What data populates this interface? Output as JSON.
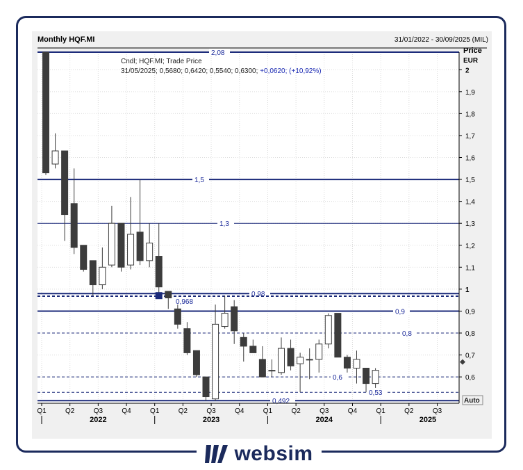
{
  "brand": {
    "name": "websim"
  },
  "chart_data": {
    "type": "candlestick",
    "title": "Monthly HQF.MI",
    "date_range": "31/01/2022 - 30/09/2025 (MIL)",
    "y_axis": {
      "title": "Price",
      "unit": "EUR",
      "min": 0.48,
      "max": 2.08,
      "ticks": [
        "2",
        "1,9",
        "1,8",
        "1,7",
        "1,6",
        "1,5",
        "1,4",
        "1,3",
        "1,2",
        "1,1",
        "1",
        "0,9",
        "0,8",
        "0,7",
        "0,6"
      ],
      "tick_values": [
        2,
        1.9,
        1.8,
        1.7,
        1.6,
        1.5,
        1.4,
        1.3,
        1.2,
        1.1,
        1,
        0.9,
        0.8,
        0.7,
        0.6
      ]
    },
    "scale_button": "Auto",
    "legend": {
      "line1": "Cndl; HQF.MI; Trade Price",
      "line2_prefix": "31/05/2025; 0,5680; 0,6420; 0,5540; 0,6300;",
      "line2_change": "+0,0620; (+10,92%)"
    },
    "x_axis": {
      "quarter_labels": [
        "Q1",
        "Q2",
        "Q3",
        "Q4",
        "Q1",
        "Q2",
        "Q3",
        "Q4",
        "Q1",
        "Q2",
        "Q3",
        "Q4",
        "Q1",
        "Q2",
        "Q3"
      ],
      "quarter_months": [
        0,
        3,
        6,
        9,
        12,
        15,
        18,
        21,
        24,
        27,
        30,
        33,
        36,
        39,
        42
      ],
      "years": [
        {
          "label": "2022",
          "month": 6
        },
        {
          "label": "2023",
          "month": 18
        },
        {
          "label": "2024",
          "month": 30
        },
        {
          "label": "2025",
          "month": 41
        }
      ]
    },
    "hlines": [
      {
        "value": 2.08,
        "label": "2,08",
        "style": "solid",
        "width": 2
      },
      {
        "value": 1.5,
        "label": "1,5",
        "style": "solid",
        "width": 2
      },
      {
        "value": 1.3,
        "label": "1,3",
        "style": "solid",
        "width": 1
      },
      {
        "value": 0.98,
        "label": "0,98",
        "style": "solid",
        "width": 2
      },
      {
        "value": 0.968,
        "label": "0,968",
        "style": "dashed",
        "width": 2
      },
      {
        "value": 0.9,
        "label": "0,9",
        "style": "solid",
        "width": 2
      },
      {
        "value": 0.8,
        "label": "0,8",
        "style": "dashed",
        "width": 1
      },
      {
        "value": 0.6,
        "label": "0,6",
        "style": "dashed",
        "width": 1
      },
      {
        "value": 0.53,
        "label": "0,53",
        "style": "dashed",
        "width": 1
      },
      {
        "value": 0.492,
        "label": "0,492",
        "style": "solid",
        "width": 2
      }
    ],
    "candles": [
      {
        "date": "2022-01",
        "open": 2.08,
        "high": 2.08,
        "low": 1.52,
        "close": 1.53
      },
      {
        "date": "2022-02",
        "open": 1.57,
        "high": 1.71,
        "low": 1.55,
        "close": 1.63
      },
      {
        "date": "2022-03",
        "open": 1.63,
        "high": 1.63,
        "low": 1.22,
        "close": 1.34
      },
      {
        "date": "2022-04",
        "open": 1.39,
        "high": 1.55,
        "low": 1.16,
        "close": 1.19
      },
      {
        "date": "2022-05",
        "open": 1.2,
        "high": 1.2,
        "low": 1.08,
        "close": 1.09
      },
      {
        "date": "2022-06",
        "open": 1.13,
        "high": 1.13,
        "low": 0.97,
        "close": 1.02
      },
      {
        "date": "2022-07",
        "open": 1.02,
        "high": 1.19,
        "low": 1.0,
        "close": 1.1
      },
      {
        "date": "2022-08",
        "open": 1.11,
        "high": 1.38,
        "low": 1.1,
        "close": 1.3
      },
      {
        "date": "2022-09",
        "open": 1.3,
        "high": 1.3,
        "low": 1.08,
        "close": 1.1
      },
      {
        "date": "2022-10",
        "open": 1.11,
        "high": 1.42,
        "low": 1.09,
        "close": 1.25
      },
      {
        "date": "2022-11",
        "open": 1.26,
        "high": 1.5,
        "low": 1.11,
        "close": 1.13
      },
      {
        "date": "2022-12",
        "open": 1.13,
        "high": 1.3,
        "low": 1.1,
        "close": 1.21
      },
      {
        "date": "2023-01",
        "open": 1.15,
        "high": 1.3,
        "low": 0.98,
        "close": 1.01
      },
      {
        "date": "2023-02",
        "open": 0.99,
        "high": 0.99,
        "low": 0.91,
        "close": 0.96
      },
      {
        "date": "2023-03",
        "open": 0.91,
        "high": 0.93,
        "low": 0.82,
        "close": 0.84
      },
      {
        "date": "2023-04",
        "open": 0.82,
        "high": 0.85,
        "low": 0.7,
        "close": 0.71
      },
      {
        "date": "2023-05",
        "open": 0.72,
        "high": 0.72,
        "low": 0.6,
        "close": 0.61
      },
      {
        "date": "2023-06",
        "open": 0.6,
        "high": 0.6,
        "low": 0.49,
        "close": 0.51
      },
      {
        "date": "2023-07",
        "open": 0.5,
        "high": 0.93,
        "low": 0.49,
        "close": 0.84
      },
      {
        "date": "2023-08",
        "open": 0.83,
        "high": 0.97,
        "low": 0.82,
        "close": 0.89
      },
      {
        "date": "2023-09",
        "open": 0.92,
        "high": 0.95,
        "low": 0.75,
        "close": 0.81
      },
      {
        "date": "2023-10",
        "open": 0.78,
        "high": 0.8,
        "low": 0.67,
        "close": 0.74
      },
      {
        "date": "2023-11",
        "open": 0.74,
        "high": 0.77,
        "low": 0.71,
        "close": 0.71
      },
      {
        "date": "2023-12",
        "open": 0.68,
        "high": 0.74,
        "low": 0.6,
        "close": 0.6
      },
      {
        "date": "2024-01",
        "open": 0.63,
        "high": 0.68,
        "low": 0.6,
        "close": 0.63
      },
      {
        "date": "2024-02",
        "open": 0.62,
        "high": 0.78,
        "low": 0.61,
        "close": 0.73
      },
      {
        "date": "2024-03",
        "open": 0.73,
        "high": 0.77,
        "low": 0.63,
        "close": 0.65
      },
      {
        "date": "2024-04",
        "open": 0.66,
        "high": 0.71,
        "low": 0.53,
        "close": 0.69
      },
      {
        "date": "2024-05",
        "open": 0.68,
        "high": 0.73,
        "low": 0.59,
        "close": 0.68
      },
      {
        "date": "2024-06",
        "open": 0.68,
        "high": 0.77,
        "low": 0.62,
        "close": 0.75
      },
      {
        "date": "2024-07",
        "open": 0.75,
        "high": 0.89,
        "low": 0.73,
        "close": 0.88
      },
      {
        "date": "2024-08",
        "open": 0.89,
        "high": 0.89,
        "low": 0.69,
        "close": 0.69
      },
      {
        "date": "2024-09",
        "open": 0.69,
        "high": 0.7,
        "low": 0.62,
        "close": 0.64
      },
      {
        "date": "2024-10",
        "open": 0.64,
        "high": 0.72,
        "low": 0.57,
        "close": 0.68
      },
      {
        "date": "2024-11",
        "open": 0.64,
        "high": 0.64,
        "low": 0.53,
        "close": 0.57
      },
      {
        "date": "2024-12",
        "open": 0.57,
        "high": 0.64,
        "low": 0.55,
        "close": 0.63
      }
    ],
    "last_marker_value": 0.63,
    "colors": {
      "line": "#1b2a7a",
      "label": "#1b2a9a",
      "bear": "#3c3c3c",
      "bull": "#ffffff",
      "highlight": "#1b2a7a",
      "change": "#1b2ab4",
      "frame": "#1b2a5c"
    }
  }
}
